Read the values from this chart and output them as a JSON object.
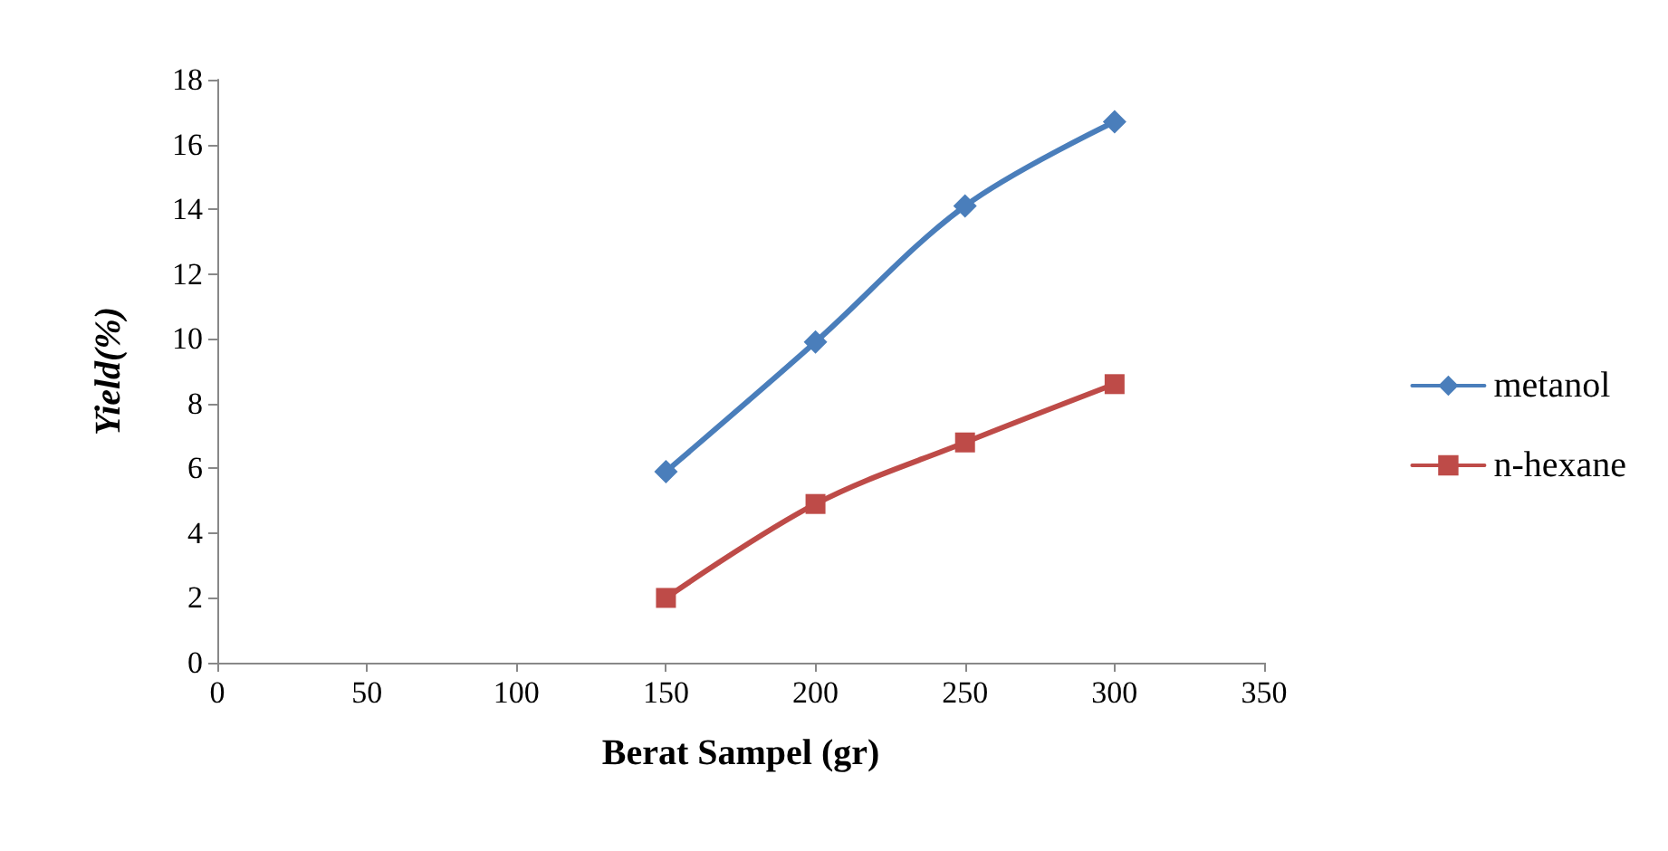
{
  "chart_data": {
    "type": "line",
    "xlabel": "Berat Sampel (gr)",
    "ylabel": "Yield(%)",
    "x": [
      150,
      200,
      250,
      300
    ],
    "series": [
      {
        "name": "metanol",
        "color": "#4a7ebb",
        "marker": "diamond",
        "values": [
          5.9,
          9.9,
          14.1,
          16.7
        ]
      },
      {
        "name": "n-hexane",
        "color": "#be4b48",
        "marker": "square",
        "values": [
          2.0,
          4.9,
          6.8,
          8.6
        ]
      }
    ],
    "xlim": [
      0,
      350
    ],
    "xticks": [
      0,
      50,
      100,
      150,
      200,
      250,
      300,
      350
    ],
    "ylim": [
      0,
      18
    ],
    "yticks": [
      0,
      2,
      4,
      6,
      8,
      10,
      12,
      14,
      16,
      18
    ],
    "grid": false,
    "legend": "right",
    "line_style": "solid"
  }
}
